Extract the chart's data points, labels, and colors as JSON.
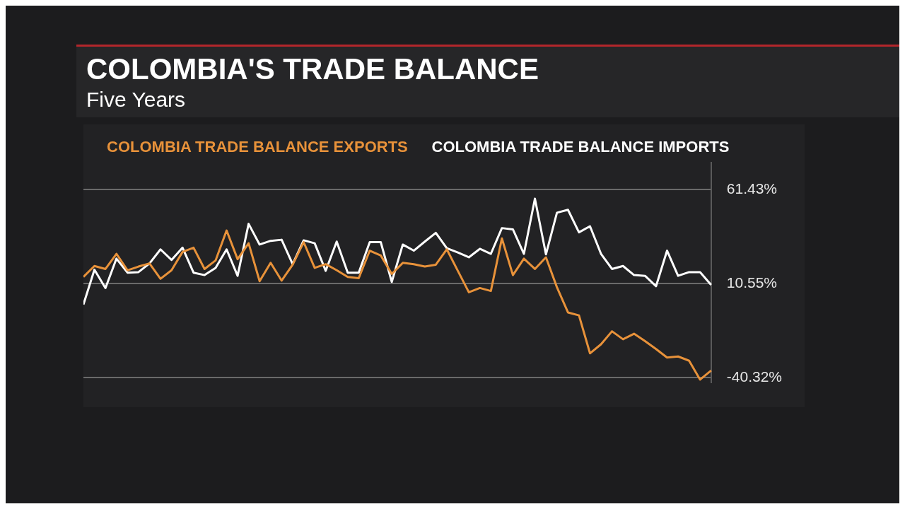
{
  "chart_data": {
    "type": "line",
    "title": "COLOMBIA'S TRADE BALANCE",
    "subtitle": "Five Years",
    "categories": [
      null,
      null,
      null,
      null,
      null,
      null,
      null,
      null,
      null,
      null,
      null,
      null,
      null,
      null,
      null,
      null,
      null,
      null,
      null,
      null,
      null,
      null,
      null,
      null,
      null,
      null,
      null,
      null,
      null,
      null,
      null,
      null,
      null,
      null,
      null,
      null,
      null,
      null,
      null,
      null,
      null,
      null,
      null,
      null,
      null,
      null,
      null,
      null,
      null,
      null,
      null,
      null,
      null,
      null,
      null,
      null,
      null,
      null
    ],
    "series": [
      {
        "name": "COLOMBIA TRADE BALANCE EXPORTS",
        "color": "#e8923a",
        "values": [
          14.2,
          20.1,
          18.5,
          26.7,
          17.8,
          19.8,
          21.5,
          13.2,
          17.8,
          27.7,
          30.0,
          18.5,
          23.1,
          39.3,
          23.8,
          32.4,
          11.9,
          21.8,
          12.2,
          20.8,
          33.0,
          19.1,
          21.1,
          17.8,
          14.2,
          13.5,
          28.4,
          25.8,
          15.8,
          21.8,
          21.1,
          19.8,
          20.8,
          29.1,
          17.5,
          5.9,
          8.2,
          6.6,
          35.0,
          15.2,
          24.1,
          18.5,
          24.8,
          8.6,
          -5.0,
          -6.6,
          -27.1,
          -22.2,
          -15.2,
          -19.5,
          -16.5,
          -20.5,
          -24.8,
          -29.4,
          -28.8,
          -31.1,
          -41.3,
          -36.4
        ]
      },
      {
        "name": "COLOMBIA TRADE BALANCE IMPORTS",
        "color": "#ffffff",
        "values": [
          -0.7,
          18.1,
          8.2,
          24.1,
          16.5,
          16.8,
          21.5,
          29.1,
          23.4,
          30.0,
          16.5,
          15.2,
          19.1,
          29.1,
          14.8,
          42.9,
          31.7,
          33.7,
          34.3,
          21.1,
          34.0,
          32.4,
          17.5,
          33.3,
          16.5,
          16.5,
          33.0,
          33.0,
          11.5,
          31.7,
          28.4,
          33.3,
          38.0,
          29.7,
          27.4,
          24.8,
          29.4,
          26.7,
          40.6,
          39.9,
          26.7,
          56.5,
          26.4,
          48.9,
          50.5,
          38.3,
          41.6,
          26.7,
          18.5,
          20.1,
          15.2,
          14.8,
          9.2,
          28.4,
          14.8,
          16.8,
          16.8,
          9.9
        ]
      }
    ],
    "ylim": [
      -43,
      76
    ],
    "yticks": [
      {
        "value": -40.32,
        "label": "-40.32%"
      },
      {
        "value": 10.55,
        "label": "10.55%"
      },
      {
        "value": 61.43,
        "label": "61.43%"
      }
    ],
    "grid": "y",
    "legend": "top left",
    "tick_labels": "y",
    "marker": "none"
  }
}
